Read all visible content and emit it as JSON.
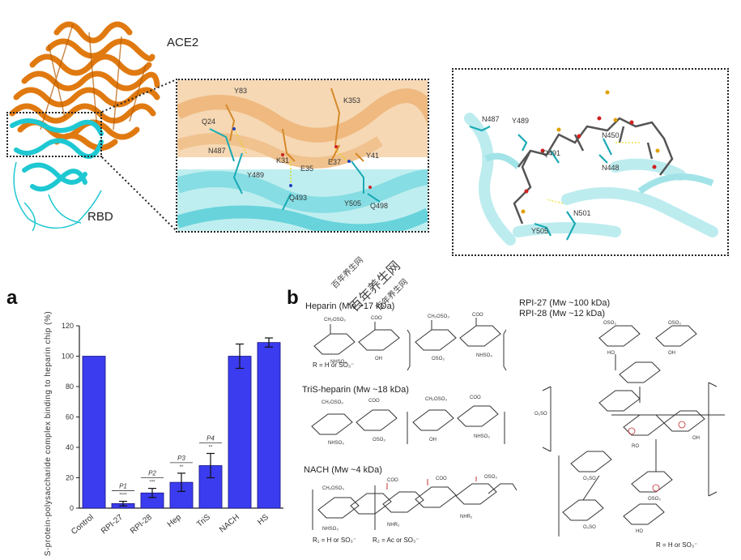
{
  "structure_labels": {
    "ace2": "ACE2",
    "rbd": "RBD"
  },
  "interface_residues": [
    "Y83",
    "Q24",
    "N487",
    "Y489",
    "K31",
    "E35",
    "K353",
    "E37",
    "Q493",
    "Y505",
    "Q498",
    "Y41"
  ],
  "heparin_residues": [
    "N487",
    "Y489",
    "Q491",
    "N450",
    "N448",
    "N501",
    "Y505"
  ],
  "panel_a": {
    "label": "a"
  },
  "panel_b": {
    "label": "b",
    "heparin": "Heparin (Mw ~17 kDa)",
    "heparin_r": "R = H or SO₃⁻",
    "tris": "TriS-heparin (Mw ~18 kDa)",
    "nach": "NACH (Mw ~4 kDa)",
    "nach_r1": "R₁ = H or SO₃⁻",
    "nach_r2": "R₂ = Ac or SO₃⁻",
    "rpi27": "RPI-27 (Mw ~100 kDa)",
    "rpi28": "RPI-28 (Mw ~12 kDa)",
    "rpi_r": "R = H or SO₃⁻"
  },
  "watermark": [
    "百年养生网",
    "百年养生网",
    "百年养生网"
  ],
  "chart_data": {
    "type": "bar",
    "ylabel": "S-protein-polysaccharide complex binding to heparin chip (%)",
    "categories": [
      "Control",
      "RPI-27",
      "RPI-28",
      "Hep",
      "TriS",
      "NACH",
      "HS"
    ],
    "values": [
      100,
      3,
      10,
      17,
      28,
      100,
      109
    ],
    "errors": [
      0,
      1.5,
      3,
      6,
      8,
      8,
      3
    ],
    "ylim": [
      0,
      120
    ],
    "yticks": [
      0,
      20,
      40,
      60,
      80,
      100,
      120
    ],
    "ytick_labels": [
      "0",
      "20",
      "40",
      "60",
      "80",
      "100",
      "120"
    ],
    "annotations": [
      "P1",
      "P2",
      "P3",
      "P4"
    ],
    "significance": [
      "****",
      "***",
      "**",
      "**"
    ],
    "bar_color": "#3b3bef"
  }
}
